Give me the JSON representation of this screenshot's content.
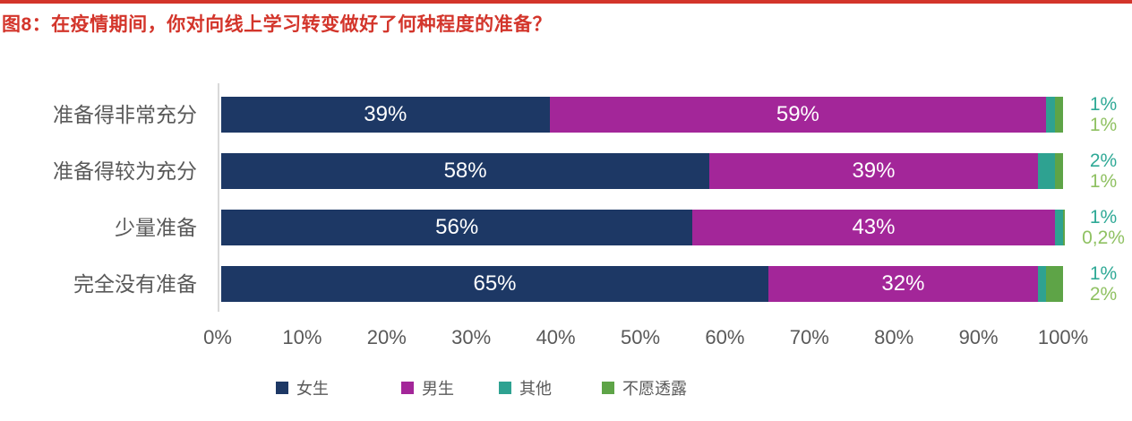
{
  "header": {
    "title": "图8：在疫情期间，你对向线上学习转变做好了何种程度的准备？",
    "accent_color": "#D3352B"
  },
  "chart_data": {
    "type": "bar",
    "orientation": "horizontal",
    "stacked": true,
    "title": "图8：在疫情期间，你对向线上学习转变做好了何种程度的准备？",
    "categories": [
      "准备得非常充分",
      "准备得较为充分",
      "少量准备",
      "完全没有准备"
    ],
    "series": [
      {
        "name": "女生",
        "color": "#1D3865",
        "values": [
          39,
          58,
          56,
          65
        ],
        "data_labels": [
          "39%",
          "58%",
          "56%",
          "65%"
        ],
        "label_style": "inside"
      },
      {
        "name": "男生",
        "color": "#A32699",
        "values": [
          59,
          39,
          43,
          32
        ],
        "data_labels": [
          "59%",
          "39%",
          "43%",
          "32%"
        ],
        "label_style": "inside"
      },
      {
        "name": "其他",
        "color": "#2EA291",
        "values": [
          1,
          2,
          1,
          1
        ],
        "data_labels": [
          "1%",
          "2%",
          "1%",
          "1%"
        ],
        "label_style": "outside",
        "outside_label_color": "#2FA996"
      },
      {
        "name": "不愿透露",
        "color": "#5EA447",
        "values": [
          1,
          1,
          0.2,
          2
        ],
        "data_labels": [
          "1%",
          "1%",
          "0,2%",
          "2%"
        ],
        "label_style": "outside",
        "outside_label_color": "#8FC162"
      }
    ],
    "x_ticks": [
      "0%",
      "10%",
      "20%",
      "30%",
      "40%",
      "50%",
      "60%",
      "70%",
      "80%",
      "90%",
      "100%"
    ],
    "xlim": [
      0,
      100
    ],
    "grid": false,
    "legend_position": "bottom",
    "axis_line_color": "#D9D9D9",
    "text_color": "#595959",
    "inside_label_min_value": 10
  }
}
